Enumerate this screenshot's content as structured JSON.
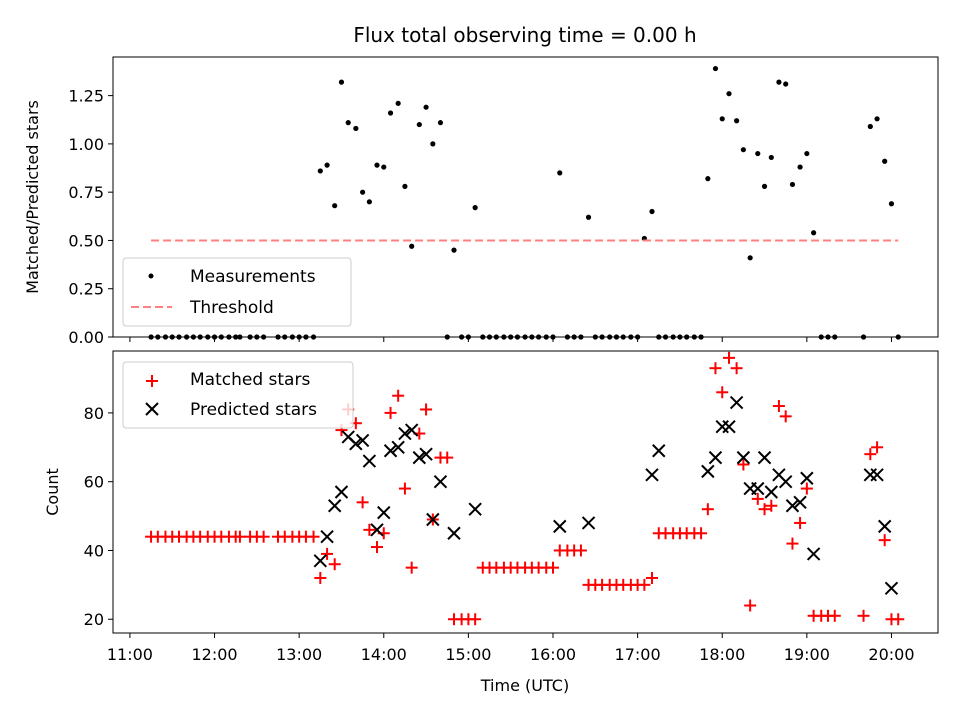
{
  "chart_data": [
    {
      "type": "scatter",
      "title": "Flux total observing time = 0.00 h",
      "xlabel": "",
      "ylabel": "Matched/Predicted stars",
      "ylim": [
        0,
        1.45
      ],
      "yticks": [
        "0.00",
        "0.25",
        "0.50",
        "0.75",
        "1.00",
        "1.25"
      ],
      "ytick_values": [
        0,
        0.25,
        0.5,
        0.75,
        1.0,
        1.25
      ],
      "xlim_hours": [
        10.8,
        20.55
      ],
      "legend_position": "lower-left",
      "series": [
        {
          "name": "Measurements",
          "marker": "dot",
          "color": "#000000",
          "x": [
            11.25,
            11.33,
            11.42,
            11.5,
            11.58,
            11.67,
            11.75,
            11.83,
            11.92,
            12.0,
            12.08,
            12.17,
            12.25,
            12.3,
            12.42,
            12.5,
            12.58,
            12.75,
            12.83,
            12.92,
            13.0,
            13.08,
            13.17,
            13.25,
            13.33,
            13.42,
            13.5,
            13.58,
            13.67,
            13.75,
            13.83,
            13.92,
            14.0,
            14.08,
            14.17,
            14.25,
            14.33,
            14.42,
            14.5,
            14.58,
            14.67,
            14.75,
            14.83,
            14.92,
            15.0,
            15.08,
            15.17,
            15.25,
            15.33,
            15.42,
            15.5,
            15.58,
            15.67,
            15.75,
            15.83,
            15.92,
            16.0,
            16.08,
            16.17,
            16.25,
            16.33,
            16.42,
            16.5,
            16.58,
            16.67,
            16.75,
            16.83,
            16.92,
            17.0,
            17.08,
            17.17,
            17.25,
            17.33,
            17.42,
            17.5,
            17.58,
            17.67,
            17.75,
            17.83,
            17.92,
            18.0,
            18.08,
            18.17,
            18.25,
            18.33,
            18.42,
            18.5,
            18.58,
            18.67,
            18.75,
            18.83,
            18.92,
            19.0,
            19.08,
            19.17,
            19.25,
            19.33,
            19.67,
            19.75,
            19.83,
            19.92,
            20.0,
            20.08
          ],
          "y": [
            0,
            0,
            0,
            0,
            0,
            0,
            0,
            0,
            0,
            0,
            0,
            0,
            0,
            0,
            0,
            0,
            0,
            0,
            0,
            0,
            0,
            0,
            0,
            0.86,
            0.89,
            0.68,
            1.32,
            1.11,
            1.08,
            0.75,
            0.7,
            0.89,
            0.88,
            1.16,
            1.21,
            0.78,
            0.47,
            1.1,
            1.19,
            1.0,
            1.11,
            0,
            0.45,
            0,
            0,
            0.67,
            0,
            0,
            0,
            0,
            0,
            0,
            0,
            0,
            0,
            0,
            0,
            0.85,
            0,
            0,
            0,
            0.62,
            0,
            0,
            0,
            0,
            0,
            0,
            0,
            0.51,
            0.65,
            0,
            0,
            0,
            0,
            0,
            0,
            0,
            0.82,
            1.39,
            1.13,
            1.26,
            1.12,
            0.97,
            0.41,
            0.95,
            0.78,
            0.93,
            1.32,
            1.31,
            0.79,
            0.88,
            0.95,
            0.54,
            0,
            0,
            0,
            0,
            1.09,
            1.13,
            0.91,
            0.69,
            0
          ]
        },
        {
          "name": "Threshold",
          "marker": "dashed-line",
          "color": "#ff8080",
          "x": [
            11.25,
            20.08
          ],
          "y": [
            0.5,
            0.5
          ]
        }
      ]
    },
    {
      "type": "scatter",
      "title": "",
      "xlabel": "Time (UTC)",
      "ylabel": "Count",
      "ylim": [
        16,
        98
      ],
      "yticks": [
        "20",
        "40",
        "60",
        "80"
      ],
      "ytick_values": [
        20,
        40,
        60,
        80
      ],
      "xticks": [
        "11:00",
        "12:00",
        "13:00",
        "14:00",
        "15:00",
        "16:00",
        "17:00",
        "18:00",
        "19:00",
        "20:00"
      ],
      "xtick_values": [
        11,
        12,
        13,
        14,
        15,
        16,
        17,
        18,
        19,
        20
      ],
      "xlim_hours": [
        10.8,
        20.55
      ],
      "legend_position": "upper-left",
      "series": [
        {
          "name": "Matched stars",
          "marker": "plus",
          "color": "#ff0000",
          "x": [
            11.25,
            11.33,
            11.42,
            11.5,
            11.58,
            11.67,
            11.75,
            11.83,
            11.92,
            12.0,
            12.08,
            12.17,
            12.25,
            12.3,
            12.42,
            12.5,
            12.58,
            12.75,
            12.83,
            12.92,
            13.0,
            13.08,
            13.17,
            13.25,
            13.33,
            13.42,
            13.5,
            13.58,
            13.67,
            13.75,
            13.83,
            13.92,
            14.0,
            14.08,
            14.17,
            14.25,
            14.33,
            14.42,
            14.5,
            14.58,
            14.67,
            14.75,
            14.83,
            14.92,
            15.0,
            15.08,
            15.17,
            15.25,
            15.33,
            15.42,
            15.5,
            15.58,
            15.67,
            15.75,
            15.83,
            15.92,
            16.0,
            16.08,
            16.17,
            16.25,
            16.33,
            16.42,
            16.5,
            16.58,
            16.67,
            16.75,
            16.83,
            16.92,
            17.0,
            17.08,
            17.17,
            17.25,
            17.33,
            17.42,
            17.5,
            17.58,
            17.67,
            17.75,
            17.83,
            17.92,
            18.0,
            18.08,
            18.17,
            18.25,
            18.33,
            18.42,
            18.5,
            18.58,
            18.67,
            18.75,
            18.83,
            18.92,
            19.0,
            19.08,
            19.17,
            19.25,
            19.33,
            19.67,
            19.75,
            19.83,
            19.92,
            20.0,
            20.08
          ],
          "y": [
            44,
            44,
            44,
            44,
            44,
            44,
            44,
            44,
            44,
            44,
            44,
            44,
            44,
            44,
            44,
            44,
            44,
            44,
            44,
            44,
            44,
            44,
            44,
            32,
            39,
            36,
            75,
            81,
            77,
            54,
            46,
            41,
            45,
            80,
            85,
            58,
            35,
            74,
            81,
            49,
            67,
            67,
            20,
            20,
            20,
            20,
            35,
            35,
            35,
            35,
            35,
            35,
            35,
            35,
            35,
            35,
            35,
            40,
            40,
            40,
            40,
            30,
            30,
            30,
            30,
            30,
            30,
            30,
            30,
            30,
            32,
            45,
            45,
            45,
            45,
            45,
            45,
            45,
            52,
            93,
            86,
            96,
            93,
            65,
            24,
            55,
            52,
            53,
            82,
            79,
            42,
            48,
            58,
            21,
            21,
            21,
            21,
            21,
            68,
            70,
            43,
            20,
            20
          ]
        },
        {
          "name": "Predicted stars",
          "marker": "cross",
          "color": "#000000",
          "x": [
            13.25,
            13.33,
            13.42,
            13.5,
            13.58,
            13.67,
            13.75,
            13.83,
            13.92,
            14.0,
            14.08,
            14.17,
            14.25,
            14.33,
            14.42,
            14.5,
            14.58,
            14.67,
            14.83,
            15.08,
            16.08,
            16.42,
            17.17,
            17.25,
            17.83,
            17.92,
            18.0,
            18.08,
            18.17,
            18.25,
            18.33,
            18.42,
            18.5,
            18.58,
            18.67,
            18.75,
            18.83,
            18.92,
            19.0,
            19.08,
            19.75,
            19.83,
            19.92,
            20.0
          ],
          "y": [
            37,
            44,
            53,
            57,
            73,
            71,
            72,
            66,
            46,
            51,
            69,
            70,
            74,
            75,
            67,
            68,
            49,
            60,
            45,
            52,
            47,
            48,
            62,
            69,
            63,
            67,
            76,
            76,
            83,
            67,
            58,
            58,
            67,
            57,
            62,
            60,
            53,
            54,
            61,
            39,
            62,
            62,
            47,
            29
          ]
        }
      ]
    }
  ]
}
